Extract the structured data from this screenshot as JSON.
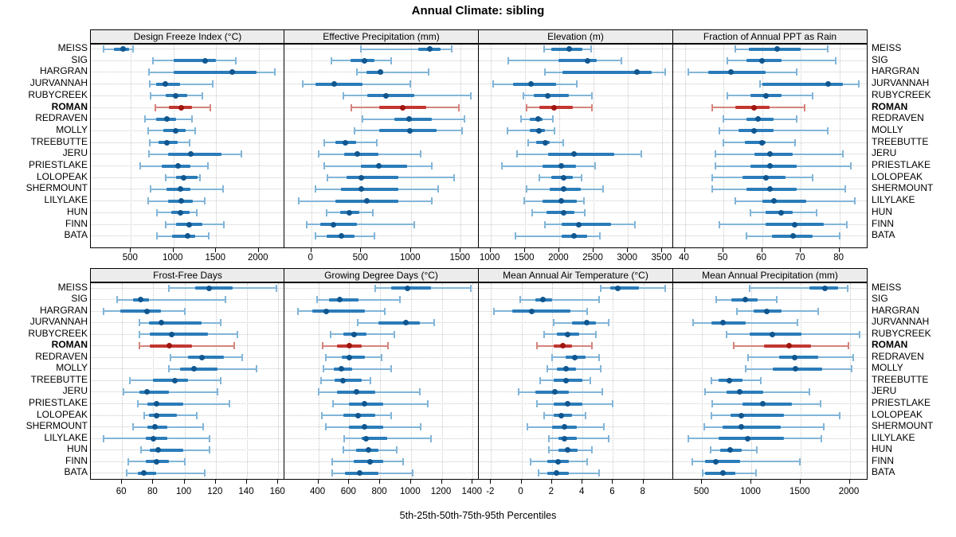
{
  "chart_data": {
    "type": "percentile-dotplot",
    "title": "Annual Climate: sibling",
    "footer": "5th-25th-50th-75th-95th Percentiles",
    "percentiles": [
      5,
      25,
      50,
      75,
      95
    ],
    "legend_position": "none",
    "grid": "dotted",
    "sites": [
      "MEISS",
      "SIG",
      "HARGRAN",
      "JURVANNAH",
      "RUBYCREEK",
      "ROMAN",
      "REDRAVEN",
      "MOLLY",
      "TREEBUTTE",
      "JERU",
      "PRIESTLAKE",
      "LOLOPEAK",
      "SHERMOUNT",
      "LILYLAKE",
      "HUN",
      "FINN",
      "BATA"
    ],
    "highlight_site": "ROMAN",
    "colors": {
      "normal": {
        "whisker": "#82b5d8",
        "band": "#2b7cb9",
        "dot": "#10568f"
      },
      "highlight": {
        "whisker": "#d4847d",
        "band": "#c13732",
        "dot": "#9f1710"
      },
      "grid": "#c9c9c9",
      "strip_bg": "#ececec",
      "border": "#000000"
    },
    "panels": [
      {
        "title": "Design Freeze Index (°C)",
        "row": 0,
        "xlim": [
          30,
          2320
        ],
        "ticks": [
          500,
          1000,
          1500,
          2000
        ],
        "values": [
          [
            180,
            300,
            410,
            480,
            530
          ],
          [
            760,
            1000,
            1370,
            1500,
            1730
          ],
          [
            710,
            1000,
            1690,
            1970,
            2190
          ],
          [
            720,
            800,
            900,
            1080,
            1460
          ],
          [
            730,
            910,
            1030,
            1160,
            1340
          ],
          [
            790,
            950,
            1090,
            1220,
            1430
          ],
          [
            670,
            800,
            920,
            1030,
            1220
          ],
          [
            700,
            880,
            1030,
            1140,
            1250
          ],
          [
            720,
            820,
            920,
            1050,
            1190
          ],
          [
            710,
            940,
            1200,
            1560,
            1800
          ],
          [
            610,
            860,
            1050,
            1200,
            1400
          ],
          [
            910,
            1030,
            1120,
            1280,
            1310
          ],
          [
            730,
            920,
            1080,
            1200,
            1580
          ],
          [
            700,
            940,
            1090,
            1230,
            1370
          ],
          [
            810,
            970,
            1080,
            1190,
            1270
          ],
          [
            910,
            1030,
            1180,
            1340,
            1590
          ],
          [
            810,
            980,
            1170,
            1250,
            1410
          ]
        ]
      },
      {
        "title": "Effective Precipitation (mm)",
        "row": 0,
        "xlim": [
          -270,
          1690
        ],
        "ticks": [
          0,
          500,
          1000,
          1500
        ],
        "values": [
          [
            500,
            1070,
            1190,
            1300,
            1410
          ],
          [
            200,
            390,
            530,
            630,
            800
          ],
          [
            460,
            550,
            690,
            720,
            1180
          ],
          [
            -90,
            40,
            230,
            510,
            990
          ],
          [
            320,
            560,
            750,
            1030,
            1600
          ],
          [
            400,
            680,
            920,
            1150,
            1480
          ],
          [
            510,
            830,
            980,
            1210,
            1540
          ],
          [
            430,
            680,
            990,
            1260,
            1510
          ],
          [
            130,
            240,
            340,
            450,
            660
          ],
          [
            70,
            330,
            460,
            670,
            1100
          ],
          [
            130,
            500,
            680,
            960,
            1210
          ],
          [
            160,
            350,
            500,
            870,
            1430
          ],
          [
            40,
            300,
            500,
            870,
            1270
          ],
          [
            -130,
            240,
            560,
            870,
            1210
          ],
          [
            150,
            290,
            380,
            480,
            620
          ],
          [
            -50,
            90,
            220,
            460,
            1030
          ],
          [
            40,
            150,
            300,
            430,
            630
          ]
        ]
      },
      {
        "title": "Elevation (m)",
        "row": 0,
        "xlim": [
          830,
          3670
        ],
        "ticks": [
          1000,
          1500,
          2000,
          2500,
          3000,
          3500
        ],
        "values": [
          [
            1780,
            1890,
            2140,
            2340,
            2470
          ],
          [
            1260,
            1990,
            2410,
            2550,
            2900
          ],
          [
            1790,
            2050,
            3130,
            3340,
            3540
          ],
          [
            1040,
            1330,
            1590,
            1950,
            2250
          ],
          [
            1480,
            1630,
            1830,
            2140,
            2480
          ],
          [
            1520,
            1710,
            1930,
            2200,
            2480
          ],
          [
            1450,
            1570,
            1690,
            1760,
            1910
          ],
          [
            1250,
            1570,
            1700,
            1790,
            1930
          ],
          [
            1550,
            1670,
            1800,
            1860,
            2060
          ],
          [
            1390,
            1840,
            2210,
            2800,
            3190
          ],
          [
            1170,
            1760,
            2030,
            2250,
            2520
          ],
          [
            1710,
            1880,
            2060,
            2200,
            2330
          ],
          [
            1530,
            1860,
            2060,
            2310,
            2640
          ],
          [
            1490,
            1760,
            2030,
            2260,
            2360
          ],
          [
            1610,
            1810,
            2070,
            2220,
            2370
          ],
          [
            1790,
            2030,
            2290,
            2760,
            3100
          ],
          [
            1360,
            2030,
            2220,
            2410,
            2590
          ]
        ]
      },
      {
        "title": "Fraction of Annual PPT as Rain",
        "row": 0,
        "xlim": [
          37,
          87.5
        ],
        "ticks": [
          40,
          50,
          60,
          70,
          80
        ],
        "values": [
          [
            53,
            56.5,
            64,
            70,
            77
          ],
          [
            51,
            56,
            60,
            65,
            79
          ],
          [
            41,
            46,
            52,
            61,
            69
          ],
          [
            59.5,
            60,
            77,
            81,
            85
          ],
          [
            51,
            57,
            61,
            65,
            73
          ],
          [
            47,
            53,
            58,
            62,
            71
          ],
          [
            50,
            56,
            59,
            63,
            69
          ],
          [
            49,
            54,
            58,
            63,
            77
          ],
          [
            50,
            55.5,
            60,
            61,
            68.5
          ],
          [
            48,
            58,
            62,
            68,
            81
          ],
          [
            48,
            57,
            62,
            69,
            83
          ],
          [
            47,
            55,
            61,
            66,
            73
          ],
          [
            47,
            56,
            62,
            69,
            81.5
          ],
          [
            53,
            60,
            63,
            71.5,
            84
          ],
          [
            57,
            61,
            65,
            68,
            74
          ],
          [
            49,
            61,
            68.5,
            76,
            82
          ],
          [
            56,
            62.5,
            68,
            73,
            80
          ]
        ]
      },
      {
        "title": "Frost-Free Days",
        "row": 1,
        "xlim": [
          40,
          165
        ],
        "ticks": [
          60,
          80,
          100,
          120,
          140,
          160
        ],
        "values": [
          [
            90,
            107,
            116,
            131,
            159
          ],
          [
            57,
            67,
            72,
            77,
            126
          ],
          [
            48,
            59,
            76,
            85,
            100
          ],
          [
            71,
            77,
            85,
            111,
            123
          ],
          [
            71,
            78,
            92,
            115,
            134
          ],
          [
            71,
            78,
            90,
            105,
            132
          ],
          [
            91,
            102,
            111,
            125,
            137
          ],
          [
            90,
            97,
            106,
            121,
            146
          ],
          [
            65,
            80,
            94,
            102,
            123
          ],
          [
            61,
            71,
            76,
            90,
            121
          ],
          [
            70,
            76,
            82,
            99,
            129
          ],
          [
            74,
            77,
            82,
            95,
            108
          ],
          [
            67,
            76,
            81,
            89,
            112
          ],
          [
            48,
            75,
            80,
            89,
            116
          ],
          [
            72,
            78,
            83,
            99,
            116
          ],
          [
            64,
            75,
            82,
            90,
            100
          ],
          [
            63,
            70,
            74,
            82,
            113
          ]
        ]
      },
      {
        "title": "Growing Degree Days (°C)",
        "row": 1,
        "xlim": [
          180,
          1445
        ],
        "ticks": [
          400,
          600,
          800,
          1000,
          1200,
          1400
        ],
        "values": [
          [
            770,
            870,
            980,
            1130,
            1390
          ],
          [
            390,
            470,
            540,
            660,
            930
          ],
          [
            270,
            360,
            450,
            700,
            830
          ],
          [
            655,
            790,
            965,
            1060,
            1150
          ],
          [
            480,
            560,
            630,
            710,
            890
          ],
          [
            430,
            520,
            600,
            680,
            850
          ],
          [
            450,
            550,
            600,
            700,
            810
          ],
          [
            435,
            500,
            550,
            620,
            870
          ],
          [
            415,
            505,
            560,
            680,
            740
          ],
          [
            400,
            520,
            645,
            770,
            1060
          ],
          [
            495,
            600,
            700,
            820,
            1110
          ],
          [
            425,
            560,
            660,
            770,
            870
          ],
          [
            450,
            600,
            700,
            820,
            1065
          ],
          [
            565,
            680,
            710,
            845,
            1130
          ],
          [
            560,
            645,
            725,
            790,
            910
          ],
          [
            490,
            630,
            735,
            820,
            950
          ],
          [
            490,
            570,
            670,
            790,
            1010
          ]
        ]
      },
      {
        "title": "Mean Annual Air Temperature (°C)",
        "row": 1,
        "xlim": [
          -2.8,
          10
        ],
        "ticks": [
          -2,
          0,
          2,
          4,
          6,
          8
        ],
        "values": [
          [
            5.2,
            5.8,
            6.3,
            7.7,
            9.4
          ],
          [
            -0.1,
            0.9,
            1.4,
            2.0,
            5.1
          ],
          [
            -1.8,
            -0.6,
            0.7,
            3.2,
            4.3
          ],
          [
            2.1,
            3.3,
            4.3,
            4.9,
            5.7
          ],
          [
            1.5,
            2.3,
            3.0,
            3.8,
            4.9
          ],
          [
            1.0,
            2.1,
            2.7,
            3.3,
            4.6
          ],
          [
            2.0,
            2.9,
            3.5,
            4.2,
            5.1
          ],
          [
            1.7,
            2.3,
            2.9,
            3.6,
            5.2
          ],
          [
            1.2,
            2.1,
            2.9,
            4.0,
            4.5
          ],
          [
            -0.2,
            0.9,
            2.2,
            3.1,
            5.3
          ],
          [
            1.0,
            2.1,
            3.0,
            4.0,
            6.0
          ],
          [
            1.5,
            2.1,
            2.6,
            3.3,
            4.2
          ],
          [
            0.4,
            2.0,
            2.8,
            3.6,
            5.4
          ],
          [
            1.8,
            2.4,
            2.8,
            3.6,
            5.7
          ],
          [
            1.8,
            2.4,
            3.0,
            3.7,
            4.6
          ],
          [
            0.6,
            1.7,
            2.4,
            3.1,
            4.3
          ],
          [
            1.1,
            1.7,
            2.3,
            3.1,
            5.1
          ]
        ]
      },
      {
        "title": "Mean Annual Precipitation (mm)",
        "row": 1,
        "xlim": [
          205,
          2190
        ],
        "ticks": [
          500,
          1000,
          1500,
          2000
        ],
        "values": [
          [
            980,
            1590,
            1750,
            1880,
            1980
          ],
          [
            640,
            800,
            940,
            1060,
            1260
          ],
          [
            850,
            1020,
            1160,
            1310,
            1680
          ],
          [
            410,
            595,
            710,
            945,
            1470
          ],
          [
            750,
            980,
            1210,
            1510,
            2100
          ],
          [
            820,
            1130,
            1380,
            1610,
            1990
          ],
          [
            965,
            1280,
            1440,
            1680,
            2040
          ],
          [
            940,
            1220,
            1450,
            1720,
            2020
          ],
          [
            595,
            670,
            775,
            910,
            1100
          ],
          [
            530,
            750,
            885,
            1120,
            1590
          ],
          [
            600,
            910,
            1115,
            1410,
            1700
          ],
          [
            595,
            785,
            900,
            1330,
            1900
          ],
          [
            520,
            710,
            900,
            1300,
            1740
          ],
          [
            360,
            670,
            965,
            1330,
            1710
          ],
          [
            585,
            685,
            785,
            900,
            1055
          ],
          [
            400,
            530,
            640,
            885,
            1490
          ],
          [
            505,
            530,
            710,
            840,
            1045
          ]
        ]
      }
    ]
  }
}
